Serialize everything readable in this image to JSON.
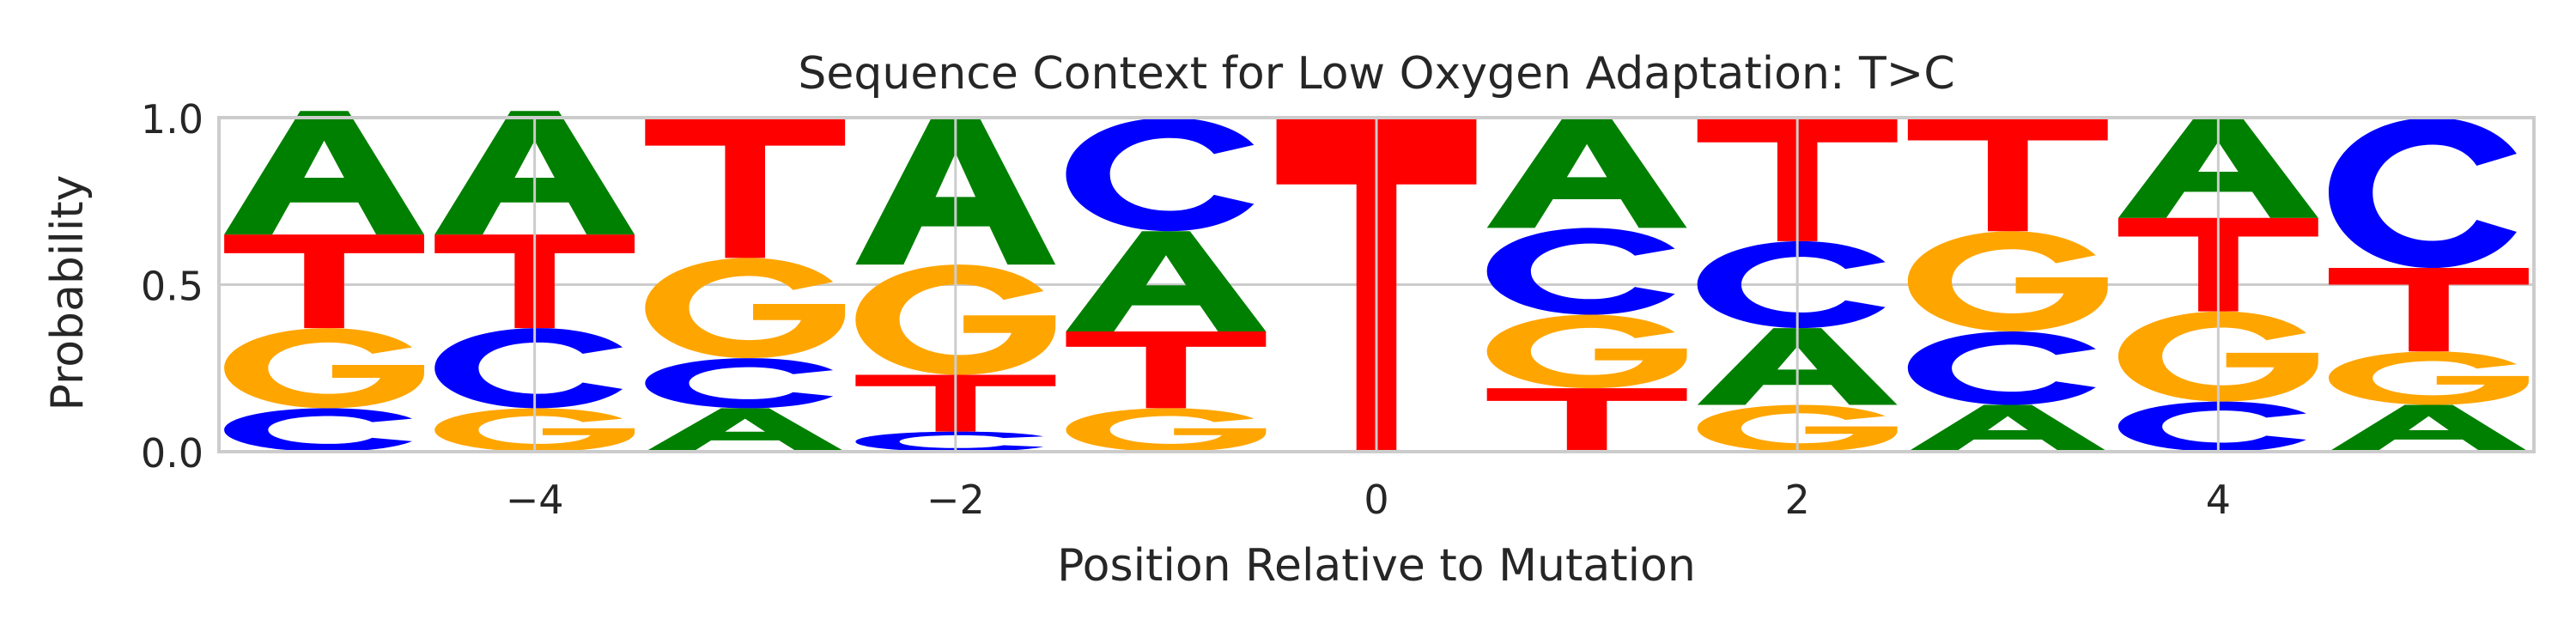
{
  "chart_data": {
    "type": "sequence-logo",
    "title": "Sequence Context for Low Oxygen Adaptation: T>C",
    "xlabel": "Position Relative to Mutation",
    "ylabel": "Probability",
    "xlim": [
      -5.5,
      5.5
    ],
    "ylim": [
      0,
      1
    ],
    "xticks": [
      -4,
      -2,
      0,
      2,
      4
    ],
    "xtick_labels": [
      "−4",
      "−2",
      "0",
      "2",
      "4"
    ],
    "yticks": [
      0,
      0.5,
      1
    ],
    "ytick_labels": [
      "0.0",
      "0.5",
      "1.0"
    ],
    "grid": true,
    "positions": [
      -5,
      -4,
      -3,
      -2,
      -1,
      0,
      1,
      2,
      3,
      4,
      5
    ],
    "stacks": [
      [
        {
          "base": "C",
          "p": 0.13
        },
        {
          "base": "G",
          "p": 0.24
        },
        {
          "base": "T",
          "p": 0.28
        },
        {
          "base": "A",
          "p": 0.37
        }
      ],
      [
        {
          "base": "G",
          "p": 0.13
        },
        {
          "base": "C",
          "p": 0.24
        },
        {
          "base": "T",
          "p": 0.28
        },
        {
          "base": "A",
          "p": 0.37
        }
      ],
      [
        {
          "base": "A",
          "p": 0.13
        },
        {
          "base": "C",
          "p": 0.15
        },
        {
          "base": "G",
          "p": 0.3
        },
        {
          "base": "T",
          "p": 0.42
        }
      ],
      [
        {
          "base": "C",
          "p": 0.06
        },
        {
          "base": "T",
          "p": 0.17
        },
        {
          "base": "G",
          "p": 0.33
        },
        {
          "base": "A",
          "p": 0.44
        }
      ],
      [
        {
          "base": "G",
          "p": 0.13
        },
        {
          "base": "T",
          "p": 0.23
        },
        {
          "base": "A",
          "p": 0.3
        },
        {
          "base": "C",
          "p": 0.34
        }
      ],
      [
        {
          "base": "T",
          "p": 1.0
        }
      ],
      [
        {
          "base": "T",
          "p": 0.19
        },
        {
          "base": "G",
          "p": 0.22
        },
        {
          "base": "C",
          "p": 0.26
        },
        {
          "base": "A",
          "p": 0.33
        }
      ],
      [
        {
          "base": "G",
          "p": 0.14
        },
        {
          "base": "A",
          "p": 0.23
        },
        {
          "base": "C",
          "p": 0.26
        },
        {
          "base": "T",
          "p": 0.37
        }
      ],
      [
        {
          "base": "A",
          "p": 0.14
        },
        {
          "base": "C",
          "p": 0.22
        },
        {
          "base": "G",
          "p": 0.3
        },
        {
          "base": "T",
          "p": 0.34
        }
      ],
      [
        {
          "base": "C",
          "p": 0.15
        },
        {
          "base": "G",
          "p": 0.27
        },
        {
          "base": "T",
          "p": 0.28
        },
        {
          "base": "A",
          "p": 0.3
        }
      ],
      [
        {
          "base": "A",
          "p": 0.14
        },
        {
          "base": "G",
          "p": 0.16
        },
        {
          "base": "T",
          "p": 0.25
        },
        {
          "base": "C",
          "p": 0.45
        }
      ]
    ],
    "colors": {
      "A": "#008000",
      "C": "#0000ff",
      "G": "#ffa500",
      "T": "#ff0000"
    },
    "grid_color": "#cccccc",
    "spine_color": "#cccccc"
  }
}
